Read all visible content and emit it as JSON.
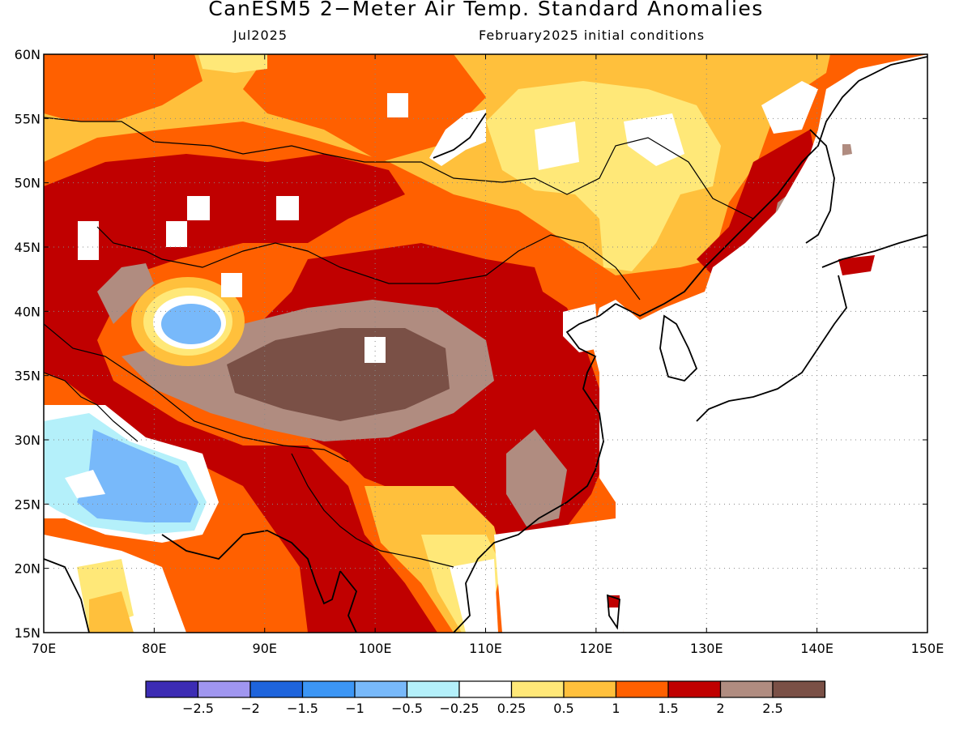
{
  "title": "CanESM5 2−Meter Air Temp. Standard Anomalies",
  "valid_month": "Jul2025",
  "init_conditions": "February2025 initial conditions",
  "lat_labels": [
    "60N",
    "55N",
    "50N",
    "45N",
    "40N",
    "35N",
    "30N",
    "25N",
    "20N",
    "15N"
  ],
  "lon_labels": [
    "70E",
    "80E",
    "90E",
    "100E",
    "110E",
    "120E",
    "130E",
    "140E",
    "150E"
  ],
  "colorbar": {
    "colors": [
      "#3c2cb4",
      "#a096f0",
      "#1e64dc",
      "#3c96f5",
      "#78b9fa",
      "#b4f0fa",
      "#ffffff",
      "#ffe878",
      "#ffc03c",
      "#ff6000",
      "#c00000",
      "#b08c80",
      "#7a5046"
    ],
    "labels": [
      "−2.5",
      "−2",
      "−1.5",
      "−1",
      "−0.5",
      "−0.25",
      "0.25",
      "0.5",
      "1",
      "1.5",
      "2",
      "2.5"
    ]
  },
  "colors": {
    "background": "#ffffff",
    "grid": "#888888",
    "coast": "#000000"
  }
}
